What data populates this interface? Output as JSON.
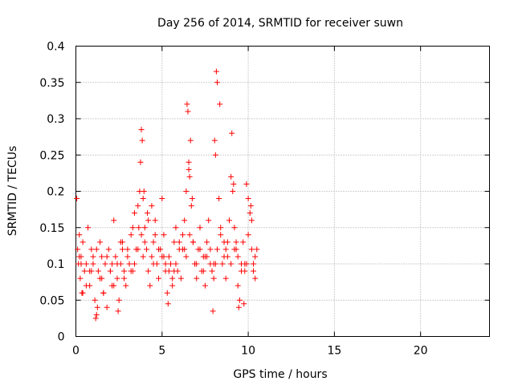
{
  "chart_data": {
    "type": "scatter",
    "title": "Day 256 of 2014, SRMTID for receiver suwn",
    "xlabel": "GPS time / hours",
    "ylabel": "SRMTID / TECUs",
    "xlim": [
      0,
      24
    ],
    "ylim": [
      0,
      0.4
    ],
    "x_ticks": [
      0,
      5,
      10,
      15,
      20
    ],
    "x_tick_labels": [
      "0",
      "5",
      "10",
      "15",
      "20"
    ],
    "y_ticks": [
      0,
      0.05,
      0.1,
      0.15,
      0.2,
      0.25,
      0.3,
      0.35,
      0.4
    ],
    "y_tick_labels": [
      "0",
      "0.05",
      "0.1",
      "0.15",
      "0.2",
      "0.25",
      "0.3",
      "0.35",
      "0.4"
    ],
    "grid": true,
    "marker": "+",
    "point_color": "#ff0000",
    "series": [
      {
        "name": "SRMTID",
        "x": [
          0.05,
          0.1,
          0.15,
          0.2,
          0.25,
          0.3,
          0.35,
          0.4,
          0.5,
          0.6,
          0.7,
          0.8,
          0.9,
          1.0,
          1.1,
          1.2,
          1.3,
          1.4,
          1.5,
          1.6,
          1.7,
          1.8,
          1.9,
          2.0,
          2.1,
          2.2,
          2.3,
          2.4,
          2.5,
          2.6,
          2.7,
          2.8,
          2.9,
          3.0,
          3.1,
          3.2,
          3.3,
          3.4,
          3.5,
          3.6,
          3.7,
          3.75,
          3.8,
          3.85,
          3.9,
          4.0,
          4.1,
          4.2,
          4.3,
          4.4,
          4.5,
          4.6,
          4.7,
          4.8,
          4.9,
          5.0,
          5.1,
          5.2,
          5.3,
          5.4,
          5.5,
          5.6,
          5.7,
          5.8,
          5.9,
          6.0,
          6.1,
          6.2,
          6.3,
          6.4,
          6.45,
          6.5,
          6.55,
          6.6,
          6.65,
          6.7,
          6.8,
          6.9,
          7.0,
          7.1,
          7.2,
          7.3,
          7.4,
          7.5,
          7.6,
          7.7,
          7.8,
          7.9,
          8.0,
          8.05,
          8.1,
          8.15,
          8.2,
          8.3,
          8.4,
          8.5,
          8.6,
          8.7,
          8.8,
          8.9,
          9.0,
          9.05,
          9.1,
          9.15,
          9.2,
          9.3,
          9.4,
          9.5,
          9.6,
          9.7,
          9.8,
          9.9,
          10.0,
          10.1,
          10.2,
          10.3,
          10.4,
          10.5,
          0.2,
          0.4,
          0.6,
          0.8,
          1.0,
          1.2,
          1.4,
          1.6,
          1.8,
          2.0,
          2.2,
          2.4,
          2.6,
          2.8,
          3.0,
          3.2,
          3.4,
          3.6,
          3.8,
          4.0,
          4.2,
          4.4,
          4.6,
          4.8,
          5.0,
          5.2,
          5.4,
          5.6,
          5.8,
          6.0,
          6.2,
          6.4,
          6.6,
          6.8,
          7.0,
          7.2,
          7.4,
          7.6,
          7.8,
          8.0,
          8.2,
          8.4,
          8.6,
          8.8,
          9.0,
          9.2,
          9.4,
          9.6,
          9.8,
          10.0,
          10.2,
          10.4,
          0.3,
          0.9,
          1.5,
          2.1,
          2.7,
          3.3,
          3.9,
          4.5,
          5.1,
          5.7,
          6.3,
          6.9,
          7.5,
          8.1,
          8.7,
          9.3,
          9.9,
          10.3,
          1.15,
          1.25,
          2.45,
          3.65,
          3.95,
          4.15,
          5.35,
          6.55,
          6.75,
          7.95,
          8.35,
          9.45,
          9.75,
          10.15
        ],
        "y": [
          0.19,
          0.12,
          0.1,
          0.14,
          0.08,
          0.11,
          0.06,
          0.13,
          0.09,
          0.1,
          0.15,
          0.07,
          0.12,
          0.11,
          0.05,
          0.03,
          0.09,
          0.13,
          0.08,
          0.06,
          0.1,
          0.04,
          0.12,
          0.09,
          0.07,
          0.16,
          0.11,
          0.08,
          0.05,
          0.1,
          0.13,
          0.09,
          0.07,
          0.12,
          0.1,
          0.14,
          0.15,
          0.17,
          0.12,
          0.18,
          0.2,
          0.24,
          0.285,
          0.27,
          0.19,
          0.15,
          0.12,
          0.09,
          0.07,
          0.11,
          0.13,
          0.16,
          0.1,
          0.08,
          0.12,
          0.19,
          0.14,
          0.09,
          0.06,
          0.11,
          0.1,
          0.07,
          0.13,
          0.15,
          0.09,
          0.12,
          0.08,
          0.14,
          0.16,
          0.2,
          0.32,
          0.31,
          0.24,
          0.22,
          0.27,
          0.18,
          0.13,
          0.1,
          0.08,
          0.12,
          0.15,
          0.09,
          0.11,
          0.07,
          0.13,
          0.16,
          0.12,
          0.09,
          0.1,
          0.27,
          0.25,
          0.365,
          0.35,
          0.19,
          0.15,
          0.1,
          0.13,
          0.08,
          0.11,
          0.16,
          0.22,
          0.28,
          0.2,
          0.21,
          0.15,
          0.12,
          0.07,
          0.05,
          0.1,
          0.13,
          0.09,
          0.21,
          0.19,
          0.17,
          0.16,
          0.1,
          0.08,
          0.12,
          0.11,
          0.06,
          0.07,
          0.09,
          0.1,
          0.12,
          0.08,
          0.06,
          0.11,
          0.09,
          0.07,
          0.1,
          0.13,
          0.08,
          0.11,
          0.09,
          0.1,
          0.12,
          0.14,
          0.13,
          0.16,
          0.18,
          0.14,
          0.12,
          0.11,
          0.1,
          0.09,
          0.08,
          0.1,
          0.13,
          0.12,
          0.11,
          0.14,
          0.13,
          0.1,
          0.12,
          0.09,
          0.11,
          0.1,
          0.08,
          0.12,
          0.14,
          0.11,
          0.13,
          0.1,
          0.12,
          0.11,
          0.09,
          0.1,
          0.14,
          0.12,
          0.11,
          0.1,
          0.09,
          0.11,
          0.1,
          0.12,
          0.09,
          0.11,
          0.1,
          0.11,
          0.09,
          0.12,
          0.1,
          0.11,
          0.1,
          0.12,
          0.13,
          0.1,
          0.09,
          0.025,
          0.04,
          0.035,
          0.15,
          0.2,
          0.17,
          0.045,
          0.23,
          0.19,
          0.035,
          0.32,
          0.04,
          0.045,
          0.18
        ]
      }
    ]
  }
}
